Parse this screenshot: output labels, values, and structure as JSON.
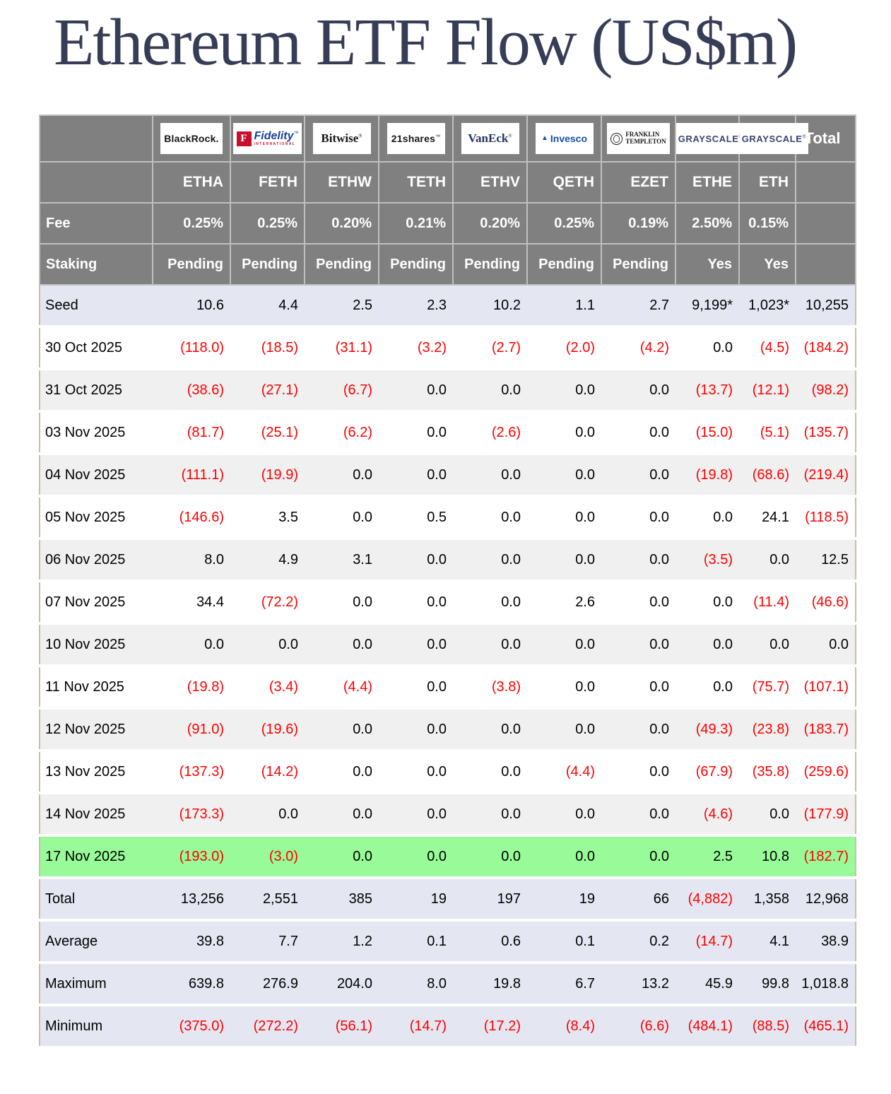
{
  "title": "Ethereum ETF Flow (US$m)",
  "colors": {
    "header_bg": "#808080",
    "header_text": "#FFFFFF",
    "negative_red": "#FE0000",
    "seed_summary_bg": "#E4E7F2",
    "alt_row_bg": "#F0F0F0",
    "latest_row_green": "#98FA98",
    "table_border_tan": "#CBBFA8",
    "title_navy": "#373D56",
    "fidelity_red": "#C8102E",
    "fidelity_blue": "#1B4298",
    "vaneck_navy": "#25355E",
    "invesco_blue": "#1450A3",
    "grayscale_navy": "#3D4470"
  },
  "chart_data": {
    "type": "table",
    "title": "Ethereum ETF Flow (US$m)",
    "corner_label": "",
    "total_label": "Total",
    "row_header_labels": {
      "fee": "Fee",
      "staking": "Staking"
    },
    "providers": [
      {
        "name": "BlackRock",
        "logo_style": "blackrock",
        "logo_text": "BlackRock.",
        "ticker": "ETHA",
        "fee": "0.25%",
        "staking": "Pending"
      },
      {
        "name": "Fidelity International",
        "logo_style": "fidelity",
        "logo_icon": "F",
        "logo_text": "Fidelity",
        "logo_mark": "™",
        "logo_sub": "INTERNATIONAL",
        "ticker": "FETH",
        "fee": "0.25%",
        "staking": "Pending"
      },
      {
        "name": "Bitwise",
        "logo_style": "bitwise",
        "logo_text": "Bitwise",
        "logo_mark": "®",
        "ticker": "ETHW",
        "fee": "0.20%",
        "staking": "Pending"
      },
      {
        "name": "21shares",
        "logo_style": "shares21",
        "logo_text": "21shares",
        "logo_mark": "™",
        "ticker": "TETH",
        "fee": "0.21%",
        "staking": "Pending"
      },
      {
        "name": "VanEck",
        "logo_style": "vaneck",
        "logo_text": "VanEck",
        "logo_mark": "®",
        "ticker": "ETHV",
        "fee": "0.20%",
        "staking": "Pending"
      },
      {
        "name": "Invesco",
        "logo_style": "invesco",
        "logo_icon": "▲",
        "logo_text": "Invesco",
        "ticker": "QETH",
        "fee": "0.25%",
        "staking": "Pending"
      },
      {
        "name": "Franklin Templeton",
        "logo_style": "franklin",
        "logo_lines": [
          "FRANKLIN",
          "TEMPLETON"
        ],
        "ticker": "EZET",
        "fee": "0.19%",
        "staking": "Pending"
      },
      {
        "name": "Grayscale",
        "logo_style": "grayscale",
        "logo_text": "GRAYSCALE",
        "logo_mark": "®",
        "ticker": "ETHE",
        "fee": "2.50%",
        "staking": "Yes"
      },
      {
        "name": "Grayscale",
        "logo_style": "grayscale",
        "logo_text": "GRAYSCALE",
        "logo_mark": "®",
        "ticker": "ETH",
        "fee": "0.15%",
        "staking": "Yes"
      }
    ],
    "rows": [
      {
        "label": "Seed",
        "values": [
          "10.6",
          "4.4",
          "2.5",
          "2.3",
          "10.2",
          "1.1",
          "2.7",
          "9,199*",
          "1,023*",
          "10,255"
        ],
        "highlight": "seed"
      },
      {
        "label": "30 Oct 2025",
        "values": [
          "(118.0)",
          "(18.5)",
          "(31.1)",
          "(3.2)",
          "(2.7)",
          "(2.0)",
          "(4.2)",
          "0.0",
          "(4.5)",
          "(184.2)"
        ]
      },
      {
        "label": "31 Oct 2025",
        "values": [
          "(38.6)",
          "(27.1)",
          "(6.7)",
          "0.0",
          "0.0",
          "0.0",
          "0.0",
          "(13.7)",
          "(12.1)",
          "(98.2)"
        ]
      },
      {
        "label": "03 Nov 2025",
        "values": [
          "(81.7)",
          "(25.1)",
          "(6.2)",
          "0.0",
          "(2.6)",
          "0.0",
          "0.0",
          "(15.0)",
          "(5.1)",
          "(135.7)"
        ]
      },
      {
        "label": "04 Nov 2025",
        "values": [
          "(111.1)",
          "(19.9)",
          "0.0",
          "0.0",
          "0.0",
          "0.0",
          "0.0",
          "(19.8)",
          "(68.6)",
          "(219.4)"
        ]
      },
      {
        "label": "05 Nov 2025",
        "values": [
          "(146.6)",
          "3.5",
          "0.0",
          "0.5",
          "0.0",
          "0.0",
          "0.0",
          "0.0",
          "24.1",
          "(118.5)"
        ]
      },
      {
        "label": "06 Nov 2025",
        "values": [
          "8.0",
          "4.9",
          "3.1",
          "0.0",
          "0.0",
          "0.0",
          "0.0",
          "(3.5)",
          "0.0",
          "12.5"
        ]
      },
      {
        "label": "07 Nov 2025",
        "values": [
          "34.4",
          "(72.2)",
          "0.0",
          "0.0",
          "0.0",
          "2.6",
          "0.0",
          "0.0",
          "(11.4)",
          "(46.6)"
        ]
      },
      {
        "label": "10 Nov 2025",
        "values": [
          "0.0",
          "0.0",
          "0.0",
          "0.0",
          "0.0",
          "0.0",
          "0.0",
          "0.0",
          "0.0",
          "0.0"
        ]
      },
      {
        "label": "11 Nov 2025",
        "values": [
          "(19.8)",
          "(3.4)",
          "(4.4)",
          "0.0",
          "(3.8)",
          "0.0",
          "0.0",
          "0.0",
          "(75.7)",
          "(107.1)"
        ]
      },
      {
        "label": "12 Nov 2025",
        "values": [
          "(91.0)",
          "(19.6)",
          "0.0",
          "0.0",
          "0.0",
          "0.0",
          "0.0",
          "(49.3)",
          "(23.8)",
          "(183.7)"
        ]
      },
      {
        "label": "13 Nov 2025",
        "values": [
          "(137.3)",
          "(14.2)",
          "0.0",
          "0.0",
          "0.0",
          "(4.4)",
          "0.0",
          "(67.9)",
          "(35.8)",
          "(259.6)"
        ]
      },
      {
        "label": "14 Nov 2025",
        "values": [
          "(173.3)",
          "0.0",
          "0.0",
          "0.0",
          "0.0",
          "0.0",
          "0.0",
          "(4.6)",
          "0.0",
          "(177.9)"
        ]
      },
      {
        "label": "17 Nov 2025",
        "values": [
          "(193.0)",
          "(3.0)",
          "0.0",
          "0.0",
          "0.0",
          "0.0",
          "0.0",
          "2.5",
          "10.8",
          "(182.7)"
        ],
        "highlight": "latest"
      }
    ],
    "summary_rows": [
      {
        "label": "Total",
        "values": [
          "13,256",
          "2,551",
          "385",
          "19",
          "197",
          "19",
          "66",
          "(4,882)",
          "1,358",
          "12,968"
        ]
      },
      {
        "label": "Average",
        "values": [
          "39.8",
          "7.7",
          "1.2",
          "0.1",
          "0.6",
          "0.1",
          "0.2",
          "(14.7)",
          "4.1",
          "38.9"
        ]
      },
      {
        "label": "Maximum",
        "values": [
          "639.8",
          "276.9",
          "204.0",
          "8.0",
          "19.8",
          "6.7",
          "13.2",
          "45.9",
          "99.8",
          "1,018.8"
        ]
      },
      {
        "label": "Minimum",
        "values": [
          "(375.0)",
          "(272.2)",
          "(56.1)",
          "(14.7)",
          "(17.2)",
          "(8.4)",
          "(6.6)",
          "(484.1)",
          "(88.5)",
          "(465.1)"
        ]
      }
    ]
  }
}
